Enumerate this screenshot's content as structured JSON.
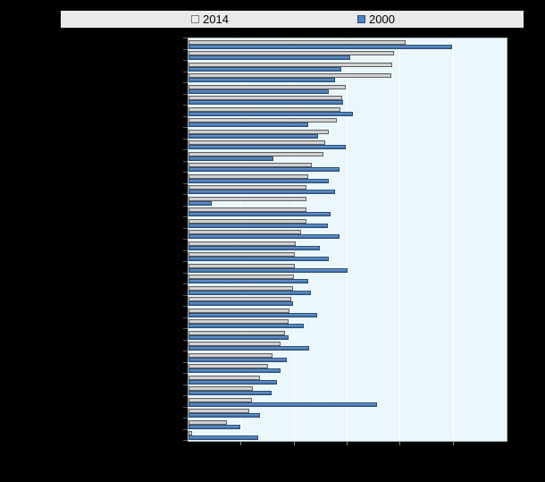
{
  "page": {
    "background": "#000000"
  },
  "legend": {
    "background": "#E9E9E9",
    "items": [
      {
        "label": "2014",
        "swatch_color": "#EFEFEF",
        "swatch_border": "#7F7F7F"
      },
      {
        "label": "2000",
        "swatch_color": "#4F81BD",
        "swatch_border": "#2B4B6F"
      }
    ]
  },
  "chart_data": {
    "type": "bar",
    "orientation": "horizontal",
    "title": "",
    "legend_position": "top",
    "n_categories": 36,
    "category_labels_visible": false,
    "x_tick_labels_visible": false,
    "value_units": "gridline intervals (axis tick labels are not visible in the image)",
    "xlim": [
      0,
      6
    ],
    "x_gridline_positions": [
      1,
      2,
      3,
      4,
      5
    ],
    "plot_background": "#EBF7FB",
    "gridline_color": "#FFFFFF",
    "series": [
      {
        "name": "2014",
        "color": "#CFCFCF",
        "border": "#616161",
        "values": [
          4.1,
          3.87,
          3.85,
          3.82,
          2.97,
          2.9,
          2.87,
          2.8,
          2.65,
          2.58,
          2.55,
          2.32,
          2.25,
          2.23,
          2.22,
          2.22,
          2.22,
          2.12,
          2.02,
          2.0,
          2.0,
          1.98,
          1.97,
          1.93,
          1.9,
          1.88,
          1.82,
          1.73,
          1.58,
          1.5,
          1.35,
          1.22,
          1.2,
          1.15,
          0.73,
          0.07
        ]
      },
      {
        "name": "2000",
        "color": "#4F81BD",
        "border": "#2B4B6F",
        "values": [
          4.97,
          3.05,
          2.88,
          2.77,
          2.65,
          2.92,
          3.1,
          2.25,
          2.45,
          2.97,
          1.6,
          2.85,
          2.65,
          2.77,
          0.43,
          2.68,
          2.62,
          2.85,
          2.48,
          2.65,
          3.0,
          2.25,
          2.3,
          1.97,
          2.42,
          2.18,
          1.88,
          2.27,
          1.85,
          1.73,
          1.67,
          1.57,
          3.55,
          1.35,
          0.97,
          1.32
        ]
      }
    ]
  }
}
